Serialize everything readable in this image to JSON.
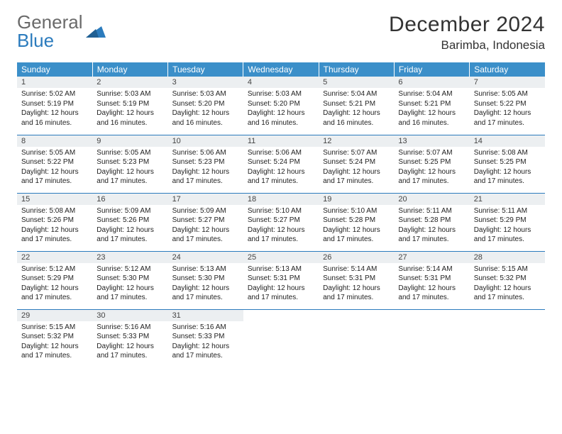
{
  "logo": {
    "part1": "General",
    "part2": "Blue"
  },
  "title": "December 2024",
  "location": "Barimba, Indonesia",
  "colors": {
    "header_bg": "#3b8fc9",
    "header_text": "#ffffff",
    "daynum_bg": "#eceff1",
    "row_border": "#2b7bbd",
    "logo_gray": "#6a6a6a",
    "logo_blue": "#2b7bbd"
  },
  "weekdays": [
    "Sunday",
    "Monday",
    "Tuesday",
    "Wednesday",
    "Thursday",
    "Friday",
    "Saturday"
  ],
  "weeks": [
    [
      {
        "n": "1",
        "sr": "5:02 AM",
        "ss": "5:19 PM",
        "dl": "12 hours and 16 minutes."
      },
      {
        "n": "2",
        "sr": "5:03 AM",
        "ss": "5:19 PM",
        "dl": "12 hours and 16 minutes."
      },
      {
        "n": "3",
        "sr": "5:03 AM",
        "ss": "5:20 PM",
        "dl": "12 hours and 16 minutes."
      },
      {
        "n": "4",
        "sr": "5:03 AM",
        "ss": "5:20 PM",
        "dl": "12 hours and 16 minutes."
      },
      {
        "n": "5",
        "sr": "5:04 AM",
        "ss": "5:21 PM",
        "dl": "12 hours and 16 minutes."
      },
      {
        "n": "6",
        "sr": "5:04 AM",
        "ss": "5:21 PM",
        "dl": "12 hours and 16 minutes."
      },
      {
        "n": "7",
        "sr": "5:05 AM",
        "ss": "5:22 PM",
        "dl": "12 hours and 17 minutes."
      }
    ],
    [
      {
        "n": "8",
        "sr": "5:05 AM",
        "ss": "5:22 PM",
        "dl": "12 hours and 17 minutes."
      },
      {
        "n": "9",
        "sr": "5:05 AM",
        "ss": "5:23 PM",
        "dl": "12 hours and 17 minutes."
      },
      {
        "n": "10",
        "sr": "5:06 AM",
        "ss": "5:23 PM",
        "dl": "12 hours and 17 minutes."
      },
      {
        "n": "11",
        "sr": "5:06 AM",
        "ss": "5:24 PM",
        "dl": "12 hours and 17 minutes."
      },
      {
        "n": "12",
        "sr": "5:07 AM",
        "ss": "5:24 PM",
        "dl": "12 hours and 17 minutes."
      },
      {
        "n": "13",
        "sr": "5:07 AM",
        "ss": "5:25 PM",
        "dl": "12 hours and 17 minutes."
      },
      {
        "n": "14",
        "sr": "5:08 AM",
        "ss": "5:25 PM",
        "dl": "12 hours and 17 minutes."
      }
    ],
    [
      {
        "n": "15",
        "sr": "5:08 AM",
        "ss": "5:26 PM",
        "dl": "12 hours and 17 minutes."
      },
      {
        "n": "16",
        "sr": "5:09 AM",
        "ss": "5:26 PM",
        "dl": "12 hours and 17 minutes."
      },
      {
        "n": "17",
        "sr": "5:09 AM",
        "ss": "5:27 PM",
        "dl": "12 hours and 17 minutes."
      },
      {
        "n": "18",
        "sr": "5:10 AM",
        "ss": "5:27 PM",
        "dl": "12 hours and 17 minutes."
      },
      {
        "n": "19",
        "sr": "5:10 AM",
        "ss": "5:28 PM",
        "dl": "12 hours and 17 minutes."
      },
      {
        "n": "20",
        "sr": "5:11 AM",
        "ss": "5:28 PM",
        "dl": "12 hours and 17 minutes."
      },
      {
        "n": "21",
        "sr": "5:11 AM",
        "ss": "5:29 PM",
        "dl": "12 hours and 17 minutes."
      }
    ],
    [
      {
        "n": "22",
        "sr": "5:12 AM",
        "ss": "5:29 PM",
        "dl": "12 hours and 17 minutes."
      },
      {
        "n": "23",
        "sr": "5:12 AM",
        "ss": "5:30 PM",
        "dl": "12 hours and 17 minutes."
      },
      {
        "n": "24",
        "sr": "5:13 AM",
        "ss": "5:30 PM",
        "dl": "12 hours and 17 minutes."
      },
      {
        "n": "25",
        "sr": "5:13 AM",
        "ss": "5:31 PM",
        "dl": "12 hours and 17 minutes."
      },
      {
        "n": "26",
        "sr": "5:14 AM",
        "ss": "5:31 PM",
        "dl": "12 hours and 17 minutes."
      },
      {
        "n": "27",
        "sr": "5:14 AM",
        "ss": "5:31 PM",
        "dl": "12 hours and 17 minutes."
      },
      {
        "n": "28",
        "sr": "5:15 AM",
        "ss": "5:32 PM",
        "dl": "12 hours and 17 minutes."
      }
    ],
    [
      {
        "n": "29",
        "sr": "5:15 AM",
        "ss": "5:32 PM",
        "dl": "12 hours and 17 minutes."
      },
      {
        "n": "30",
        "sr": "5:16 AM",
        "ss": "5:33 PM",
        "dl": "12 hours and 17 minutes."
      },
      {
        "n": "31",
        "sr": "5:16 AM",
        "ss": "5:33 PM",
        "dl": "12 hours and 17 minutes."
      },
      null,
      null,
      null,
      null
    ]
  ],
  "labels": {
    "sunrise": "Sunrise:",
    "sunset": "Sunset:",
    "daylight": "Daylight:"
  }
}
